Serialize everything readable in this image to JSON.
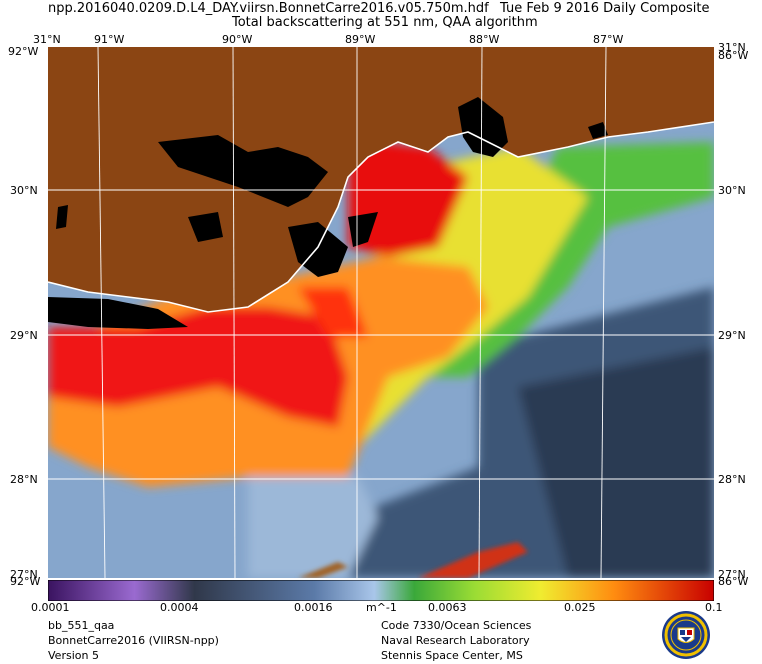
{
  "header": {
    "filename": "npp.2016040.0209.D.L4_DAY.viirsn.BonnetCarre2016.v05.750m.hdf",
    "date": "Tue Feb  9 2016 Daily Composite",
    "subtitle": "Total backscattering at 551 nm, QAA algorithm"
  },
  "map": {
    "lon_labels": [
      "91°W",
      "90°W",
      "89°W",
      "88°W",
      "87°W"
    ],
    "lat_labels": [
      "30°N",
      "29°N",
      "28°N"
    ],
    "corner_top_left": "31°N",
    "corner_top_left_lon": "92°W",
    "corner_top_right": "31°N",
    "corner_top_right_lon": "86°W",
    "corner_bottom_left": "27°N",
    "corner_bottom_left_lon": "92°W",
    "corner_bottom_right": "27°N",
    "corner_bottom_right_lon": "86°W",
    "colors": {
      "land": "#8b4513",
      "water_low": "#7f9fc8",
      "turbid": "#ff2000",
      "grid": "#ffffff"
    }
  },
  "colorbar": {
    "tick_labels": [
      "0.0001",
      "0.0004",
      "0.0016",
      "0.0063",
      "0.025",
      "0.1"
    ],
    "unit": "m^-1",
    "scale": "log"
  },
  "footer": {
    "left": [
      "bb_551_qaa",
      "BonnetCarre2016 (VIIRSN-npp)",
      "Version 5"
    ],
    "right": [
      "Code 7330/Ocean Sciences",
      "Naval Research Laboratory",
      "Stennis Space Center, MS"
    ]
  },
  "logo": {
    "name": "Naval Research Laboratory seal"
  }
}
